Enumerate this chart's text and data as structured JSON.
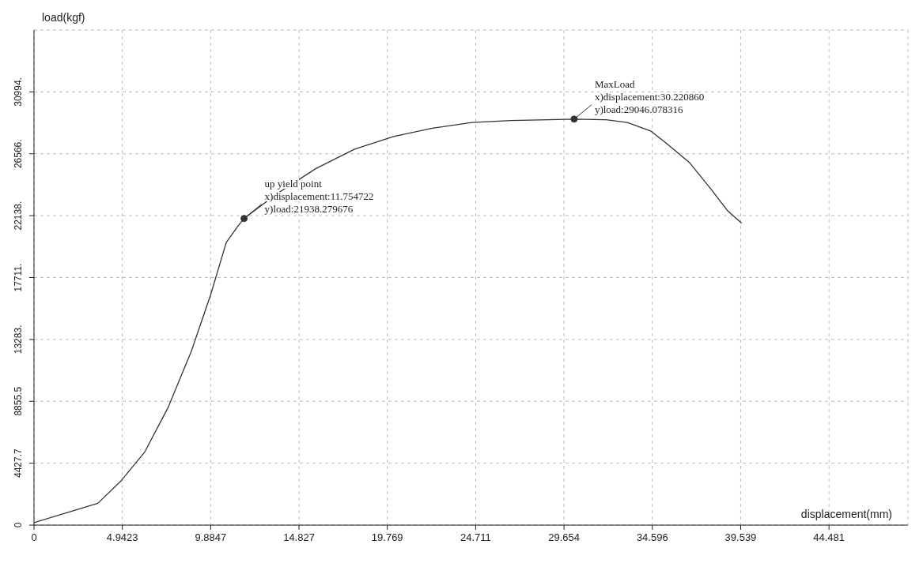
{
  "chart_data": {
    "type": "line",
    "xlabel": "displacement(mm)",
    "ylabel": "load(kgf)",
    "x": [
      0,
      3.57,
      4.88,
      6.18,
      7.49,
      8.8,
      9.88,
      10.76,
      11.41,
      11.75,
      13.59,
      15.76,
      17.94,
      20.12,
      22.29,
      24.5,
      26.7,
      28.8,
      30.22,
      32,
      33.2,
      34.5,
      35.4,
      36.7,
      37.9,
      38.8,
      39.6
    ],
    "series": [
      {
        "color": "#333333",
        "values": [
          170,
          1560,
          3180,
          5200,
          8380,
          12430,
          16470,
          20230,
          21390,
          21940,
          23700,
          25500,
          26900,
          27800,
          28400,
          28800,
          28950,
          29000,
          29050,
          29000,
          28800,
          28200,
          27300,
          25900,
          24000,
          22500,
          21600
        ]
      }
    ],
    "xlim": [
      0,
      48.9
    ],
    "xticks": [
      0,
      4.9423,
      9.8847,
      14.827,
      19.769,
      24.711,
      29.654,
      34.596,
      39.539,
      44.481
    ],
    "ylim": [
      0,
      35421
    ],
    "yticks": [
      0,
      4427.7,
      8855.5,
      {
        "value": 13283,
        "label": "13283."
      },
      {
        "value": 17711,
        "label": "17711."
      },
      {
        "value": 22138,
        "label": "22138."
      },
      {
        "value": 26566,
        "label": "26566."
      },
      {
        "value": 30994,
        "label": "30994."
      }
    ],
    "annotations": [
      {
        "text": "up yield point\nx)displacement:11.754722\ny)load:21938.279676",
        "x": 11.754722,
        "y": 21938.279676
      },
      {
        "text": "MaxLoad\nx)displacement:30.220860\ny)load:29046.078316",
        "x": 30.22086,
        "y": 29046.078316
      }
    ],
    "grid": true,
    "legend": false,
    "marker": "none",
    "line_style": "solid"
  }
}
